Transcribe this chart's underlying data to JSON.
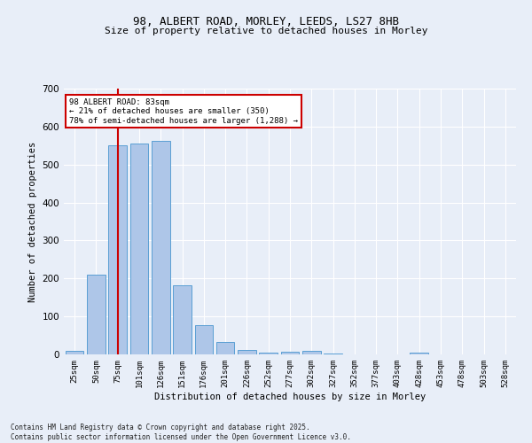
{
  "title_line1": "98, ALBERT ROAD, MORLEY, LEEDS, LS27 8HB",
  "title_line2": "Size of property relative to detached houses in Morley",
  "xlabel": "Distribution of detached houses by size in Morley",
  "ylabel": "Number of detached properties",
  "categories": [
    "25sqm",
    "50sqm",
    "75sqm",
    "101sqm",
    "126sqm",
    "151sqm",
    "176sqm",
    "201sqm",
    "226sqm",
    "252sqm",
    "277sqm",
    "302sqm",
    "327sqm",
    "352sqm",
    "377sqm",
    "403sqm",
    "428sqm",
    "453sqm",
    "478sqm",
    "503sqm",
    "528sqm"
  ],
  "values": [
    10,
    210,
    550,
    555,
    562,
    182,
    78,
    32,
    12,
    5,
    6,
    10,
    2,
    0,
    0,
    0,
    5,
    0,
    0,
    0,
    0
  ],
  "bar_color": "#aec6e8",
  "bar_edge_color": "#5a9fd4",
  "vline_x": 2,
  "vline_color": "#cc0000",
  "ylim": [
    0,
    700
  ],
  "yticks": [
    0,
    100,
    200,
    300,
    400,
    500,
    600,
    700
  ],
  "bg_color": "#e8eef8",
  "grid_color": "#ffffff",
  "annotation_title": "98 ALBERT ROAD: 83sqm",
  "annotation_line2": "← 21% of detached houses are smaller (350)",
  "annotation_line3": "78% of semi-detached houses are larger (1,288) →",
  "annotation_box_color": "#ffffff",
  "annotation_box_edge": "#cc0000",
  "footer_line1": "Contains HM Land Registry data © Crown copyright and database right 2025.",
  "footer_line2": "Contains public sector information licensed under the Open Government Licence v3.0."
}
